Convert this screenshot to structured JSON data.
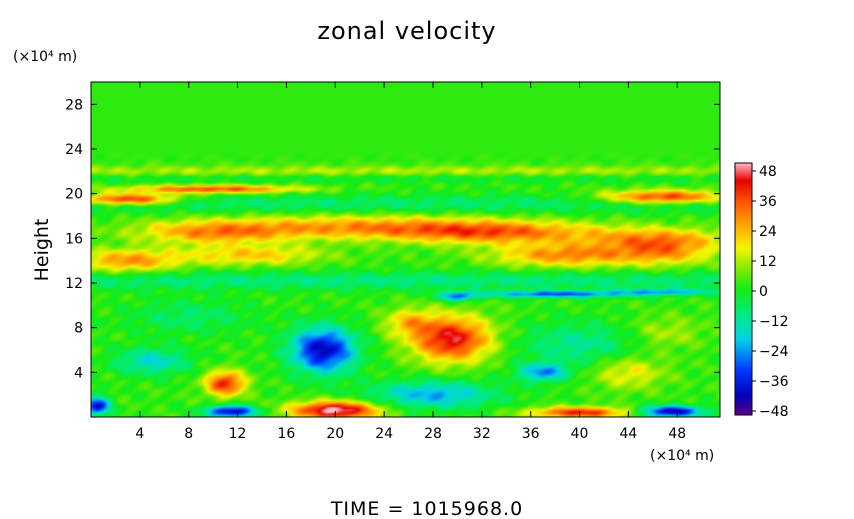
{
  "chart_data": {
    "type": "heatmap",
    "title": "zonal velocity",
    "ylabel": "Height",
    "y_unit": "(×10⁴ m)",
    "x_unit": "(×10⁴ m)",
    "footer": "TIME  =  1015968.0",
    "xlim": [
      0,
      51.5
    ],
    "ylim": [
      0,
      30
    ],
    "x_ticks": [
      4,
      8,
      12,
      16,
      20,
      24,
      28,
      32,
      36,
      40,
      44,
      48
    ],
    "y_ticks": [
      4,
      8,
      12,
      16,
      20,
      24,
      28
    ],
    "colorbar": {
      "ticks": [
        48,
        36,
        24,
        12,
        0,
        -12,
        -24,
        -36,
        -48
      ],
      "range": [
        -52,
        52
      ]
    },
    "background_value": 2,
    "features": [
      {
        "x": 25,
        "y": 22.0,
        "sx": 60,
        "sy": 0.5,
        "a": 10
      },
      {
        "x": 25,
        "y": 21.4,
        "sx": 60,
        "sy": 0.4,
        "a": -6
      },
      {
        "x": 10,
        "y": 20.4,
        "sx": 7,
        "sy": 0.35,
        "a": 36
      },
      {
        "x": 3,
        "y": 19.5,
        "sx": 4,
        "sy": 0.5,
        "a": 42
      },
      {
        "x": 47,
        "y": 19.7,
        "sx": 5,
        "sy": 0.6,
        "a": 40
      },
      {
        "x": 25,
        "y": 19.1,
        "sx": 60,
        "sy": 0.8,
        "a": -10
      },
      {
        "x": 22,
        "y": 17.0,
        "sx": 12,
        "sy": 1.0,
        "a": 26
      },
      {
        "x": 33,
        "y": 16.5,
        "sx": 8,
        "sy": 1.0,
        "a": 28
      },
      {
        "x": 10,
        "y": 16.5,
        "sx": 6,
        "sy": 1.0,
        "a": 24
      },
      {
        "x": 46,
        "y": 16.0,
        "sx": 6,
        "sy": 1.0,
        "a": 22
      },
      {
        "x": 3,
        "y": 14.0,
        "sx": 4,
        "sy": 1.0,
        "a": 26
      },
      {
        "x": 13,
        "y": 14.5,
        "sx": 6,
        "sy": 0.9,
        "a": 20
      },
      {
        "x": 39,
        "y": 14.5,
        "sx": 6,
        "sy": 1.0,
        "a": 28
      },
      {
        "x": 47,
        "y": 14.8,
        "sx": 4,
        "sy": 1.2,
        "a": 22
      },
      {
        "x": 25,
        "y": 12.2,
        "sx": 60,
        "sy": 0.8,
        "a": -12
      },
      {
        "x": 38,
        "y": 11.0,
        "sx": 6,
        "sy": 0.3,
        "a": -34
      },
      {
        "x": 47,
        "y": 11.2,
        "sx": 4,
        "sy": 0.3,
        "a": -24
      },
      {
        "x": 30,
        "y": 10.8,
        "sx": 1.5,
        "sy": 0.4,
        "a": -30
      },
      {
        "x": 19,
        "y": 6.0,
        "sx": 2.6,
        "sy": 2.0,
        "a": -46
      },
      {
        "x": 29.5,
        "y": 7.0,
        "sx": 3.2,
        "sy": 2.0,
        "a": 44
      },
      {
        "x": 26,
        "y": 8.5,
        "sx": 2,
        "sy": 1.2,
        "a": 18
      },
      {
        "x": 11,
        "y": 3.0,
        "sx": 1.6,
        "sy": 1.1,
        "a": 40
      },
      {
        "x": 20,
        "y": 0.6,
        "sx": 3.5,
        "sy": 0.8,
        "a": 52
      },
      {
        "x": 11.5,
        "y": 0.5,
        "sx": 2,
        "sy": 0.5,
        "a": -48
      },
      {
        "x": 40,
        "y": 0.4,
        "sx": 4,
        "sy": 0.5,
        "a": 40
      },
      {
        "x": 47.5,
        "y": 0.5,
        "sx": 2.5,
        "sy": 0.5,
        "a": -48
      },
      {
        "x": 0.5,
        "y": 1.0,
        "sx": 1.0,
        "sy": 0.8,
        "a": -44
      },
      {
        "x": 28,
        "y": 2.0,
        "sx": 5,
        "sy": 1.2,
        "a": -26
      },
      {
        "x": 40,
        "y": 6.5,
        "sx": 5,
        "sy": 2.0,
        "a": -14
      },
      {
        "x": 44,
        "y": 4.0,
        "sx": 3,
        "sy": 1.5,
        "a": 16
      },
      {
        "x": 8,
        "y": 9.0,
        "sx": 5,
        "sy": 1.5,
        "a": -10
      },
      {
        "x": 5,
        "y": 5.0,
        "sx": 3,
        "sy": 1.2,
        "a": -20
      },
      {
        "x": 47,
        "y": 7.5,
        "sx": 3,
        "sy": 1.5,
        "a": 10
      },
      {
        "x": 37,
        "y": 4.0,
        "sx": 2,
        "sy": 0.8,
        "a": -28
      }
    ]
  }
}
